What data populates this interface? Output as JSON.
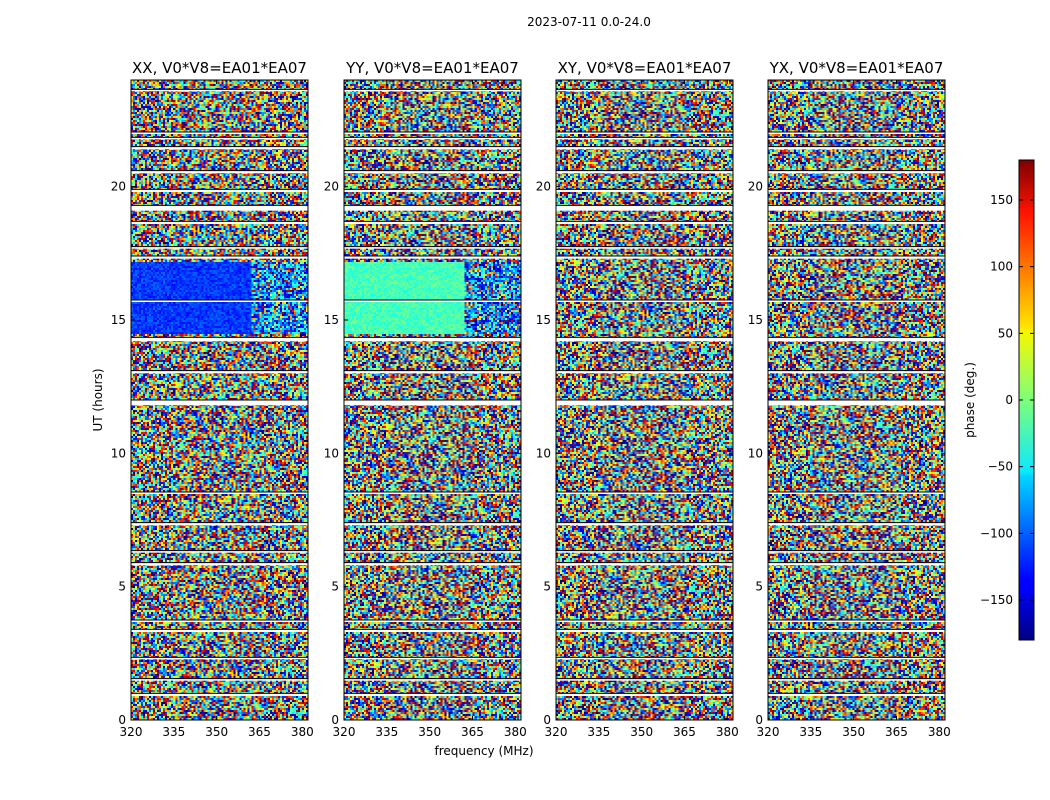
{
  "chart_data": {
    "type": "heatmap",
    "suptitle": "2023-07-11 0.0-24.0",
    "xlabel": "frequency (MHz)",
    "ylabel": "UT (hours)",
    "xlim": [
      320,
      382
    ],
    "ylim": [
      0,
      24
    ],
    "xticks": [
      "320",
      "335",
      "350",
      "365",
      "380"
    ],
    "xtick_values": [
      320,
      335,
      350,
      365,
      380
    ],
    "yticks": [
      "0",
      "5",
      "10",
      "15",
      "20"
    ],
    "ytick_values": [
      0,
      5,
      10,
      15,
      20
    ],
    "colorbar": {
      "label": "phase (deg.)",
      "range": [
        -180,
        180
      ],
      "ticks": [
        "−150",
        "−100",
        "−50",
        "0",
        "50",
        "100",
        "150"
      ],
      "tick_values": [
        -150,
        -100,
        -50,
        0,
        50,
        100,
        150
      ],
      "colormap": "jet"
    },
    "panels": [
      {
        "title": "XX, V0*V8=EA01*EA07",
        "coherent_phase_deg": -115,
        "coherent_phase_high_freq_deg": -90
      },
      {
        "title": "YY, V0*V8=EA01*EA07",
        "coherent_phase_deg": -20,
        "coherent_phase_high_freq_deg": -95
      },
      {
        "title": "XY, V0*V8=EA01*EA07",
        "coherent_phase_deg": null,
        "coherent_phase_high_freq_deg": null
      },
      {
        "title": "YX, V0*V8=EA01*EA07",
        "coherent_phase_deg": null,
        "coherent_phase_high_freq_deg": null
      }
    ],
    "coherent_block_ut": [
      14.5,
      17.2
    ],
    "coherent_block_split_mhz": 362,
    "flagged_ut_bands": [
      [
        0.9,
        1.0
      ],
      [
        1.5,
        1.55
      ],
      [
        2.3,
        2.35
      ],
      [
        3.3,
        3.4
      ],
      [
        3.7,
        3.75
      ],
      [
        5.8,
        5.9
      ],
      [
        6.3,
        6.35
      ],
      [
        7.3,
        7.4
      ],
      [
        8.5,
        8.55
      ],
      [
        11.8,
        12.0
      ],
      [
        13.0,
        13.1
      ],
      [
        14.2,
        14.35
      ],
      [
        15.7,
        15.75
      ],
      [
        17.3,
        17.4
      ],
      [
        17.7,
        17.75
      ],
      [
        18.6,
        18.7
      ],
      [
        19.1,
        19.3
      ],
      [
        19.8,
        19.9
      ],
      [
        20.5,
        20.6
      ],
      [
        21.4,
        21.5
      ],
      [
        21.8,
        21.85
      ],
      [
        22.0,
        22.05
      ],
      [
        23.6,
        23.65
      ]
    ],
    "grid": false,
    "legend": "none"
  }
}
